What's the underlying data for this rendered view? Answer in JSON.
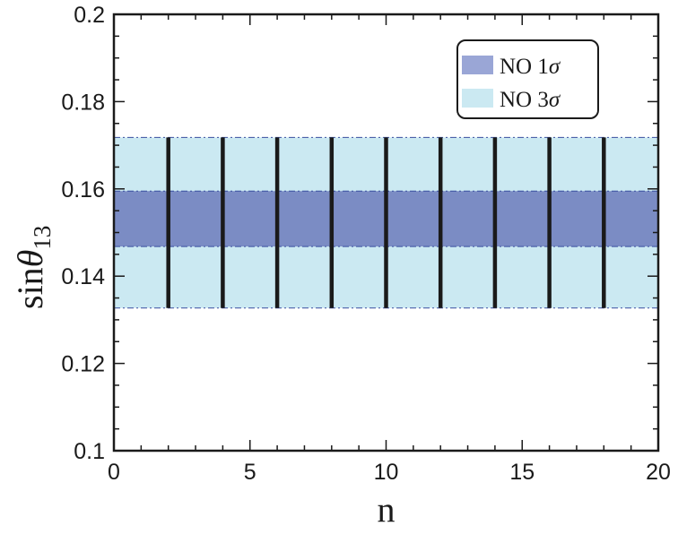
{
  "chart_data": {
    "type": "scatter",
    "xlabel": "n",
    "ylabel_main": "sin",
    "ylabel_greek": "θ",
    "ylabel_sub": "13",
    "xlim": [
      0,
      20
    ],
    "ylim": [
      0.1,
      0.2
    ],
    "xticks": [
      0,
      5,
      10,
      15,
      20
    ],
    "xtick_labels": [
      "0",
      "5",
      "10",
      "15",
      "20"
    ],
    "yticks": [
      0.1,
      0.12,
      0.14,
      0.16,
      0.18,
      0.2
    ],
    "ytick_labels": [
      "0.1",
      "0.12",
      "0.14",
      "0.16",
      "0.18",
      "0.2"
    ],
    "bands": [
      {
        "name": "NO 3σ",
        "legend_main": "NO 3",
        "legend_greek": "σ",
        "y_low": 0.1327,
        "y_high": 0.1718,
        "color": "#cbe9f2"
      },
      {
        "name": "NO 1σ",
        "legend_main": "NO 1",
        "legend_greek": "σ",
        "y_low": 0.1468,
        "y_high": 0.1595,
        "color": "#7b8cc4"
      }
    ],
    "segments": {
      "x": [
        2,
        4,
        6,
        8,
        10,
        12,
        14,
        16,
        18
      ],
      "y_low": 0.1327,
      "y_high": 0.1718,
      "color": "#1a1a1a"
    },
    "grid": false,
    "legend_position": "top-right",
    "legend_swatch_colors": [
      "#9aa6d6",
      "#cbe9f2"
    ]
  }
}
